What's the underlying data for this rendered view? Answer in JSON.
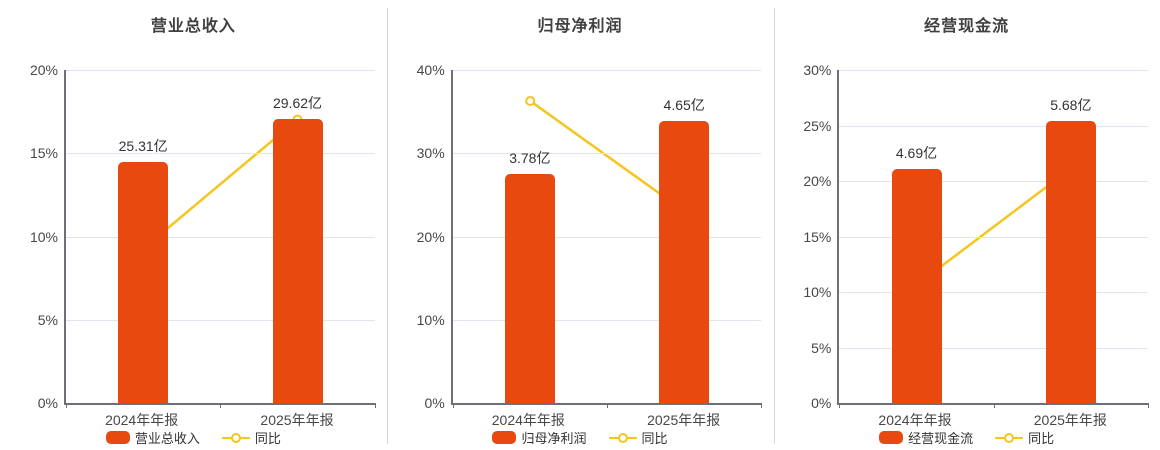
{
  "colors": {
    "bar": "#e8490f",
    "line": "#f5c51d",
    "grid": "#e0e4ee",
    "axis": "#6e7079",
    "tick_text": "#474747",
    "value_text": "#333333",
    "title_text": "#404040",
    "separator": "#d4d7dc",
    "background": "#ffffff"
  },
  "chart_data": [
    {
      "type": "bar+line",
      "title": "营业总收入",
      "categories": [
        "2024年年报",
        "2025年年报"
      ],
      "ylim": [
        0,
        20
      ],
      "yticks": [
        "20%",
        "15%",
        "10%",
        "5%",
        "0%"
      ],
      "grid": true,
      "legend_position": "bottom",
      "bar_series": {
        "name": "营业总收入",
        "unit": "亿",
        "values_yi": [
          25.31,
          29.62
        ],
        "labels": [
          "25.31亿",
          "29.62亿"
        ],
        "display_height_axis_pct": [
          14.45,
          17.03
        ]
      },
      "line_series": {
        "name": "同比",
        "values_pct": [
          9.26,
          17.03
        ]
      }
    },
    {
      "type": "bar+line",
      "title": "归母净利润",
      "categories": [
        "2024年年报",
        "2025年年报"
      ],
      "ylim": [
        0,
        40
      ],
      "yticks": [
        "40%",
        "30%",
        "20%",
        "10%",
        "0%"
      ],
      "grid": true,
      "legend_position": "bottom",
      "bar_series": {
        "name": "归母净利润",
        "unit": "亿",
        "values_yi": [
          3.78,
          4.65
        ],
        "labels": [
          "3.78亿",
          "4.65亿"
        ],
        "display_height_axis_pct": [
          27.55,
          33.9
        ]
      },
      "line_series": {
        "name": "同比",
        "values_pct": [
          36.3,
          23.02
        ]
      }
    },
    {
      "type": "bar+line",
      "title": "经营现金流",
      "categories": [
        "2024年年报",
        "2025年年报"
      ],
      "ylim": [
        0,
        30
      ],
      "yticks": [
        "30%",
        "25%",
        "20%",
        "15%",
        "10%",
        "5%",
        "0%"
      ],
      "grid": true,
      "legend_position": "bottom",
      "bar_series": {
        "name": "经营现金流",
        "unit": "亿",
        "values_yi": [
          4.69,
          5.68
        ],
        "labels": [
          "4.69亿",
          "5.68亿"
        ],
        "display_height_axis_pct": [
          21.05,
          25.4
        ]
      },
      "line_series": {
        "name": "同比",
        "values_pct": [
          10.6,
          21.11
        ]
      }
    }
  ]
}
